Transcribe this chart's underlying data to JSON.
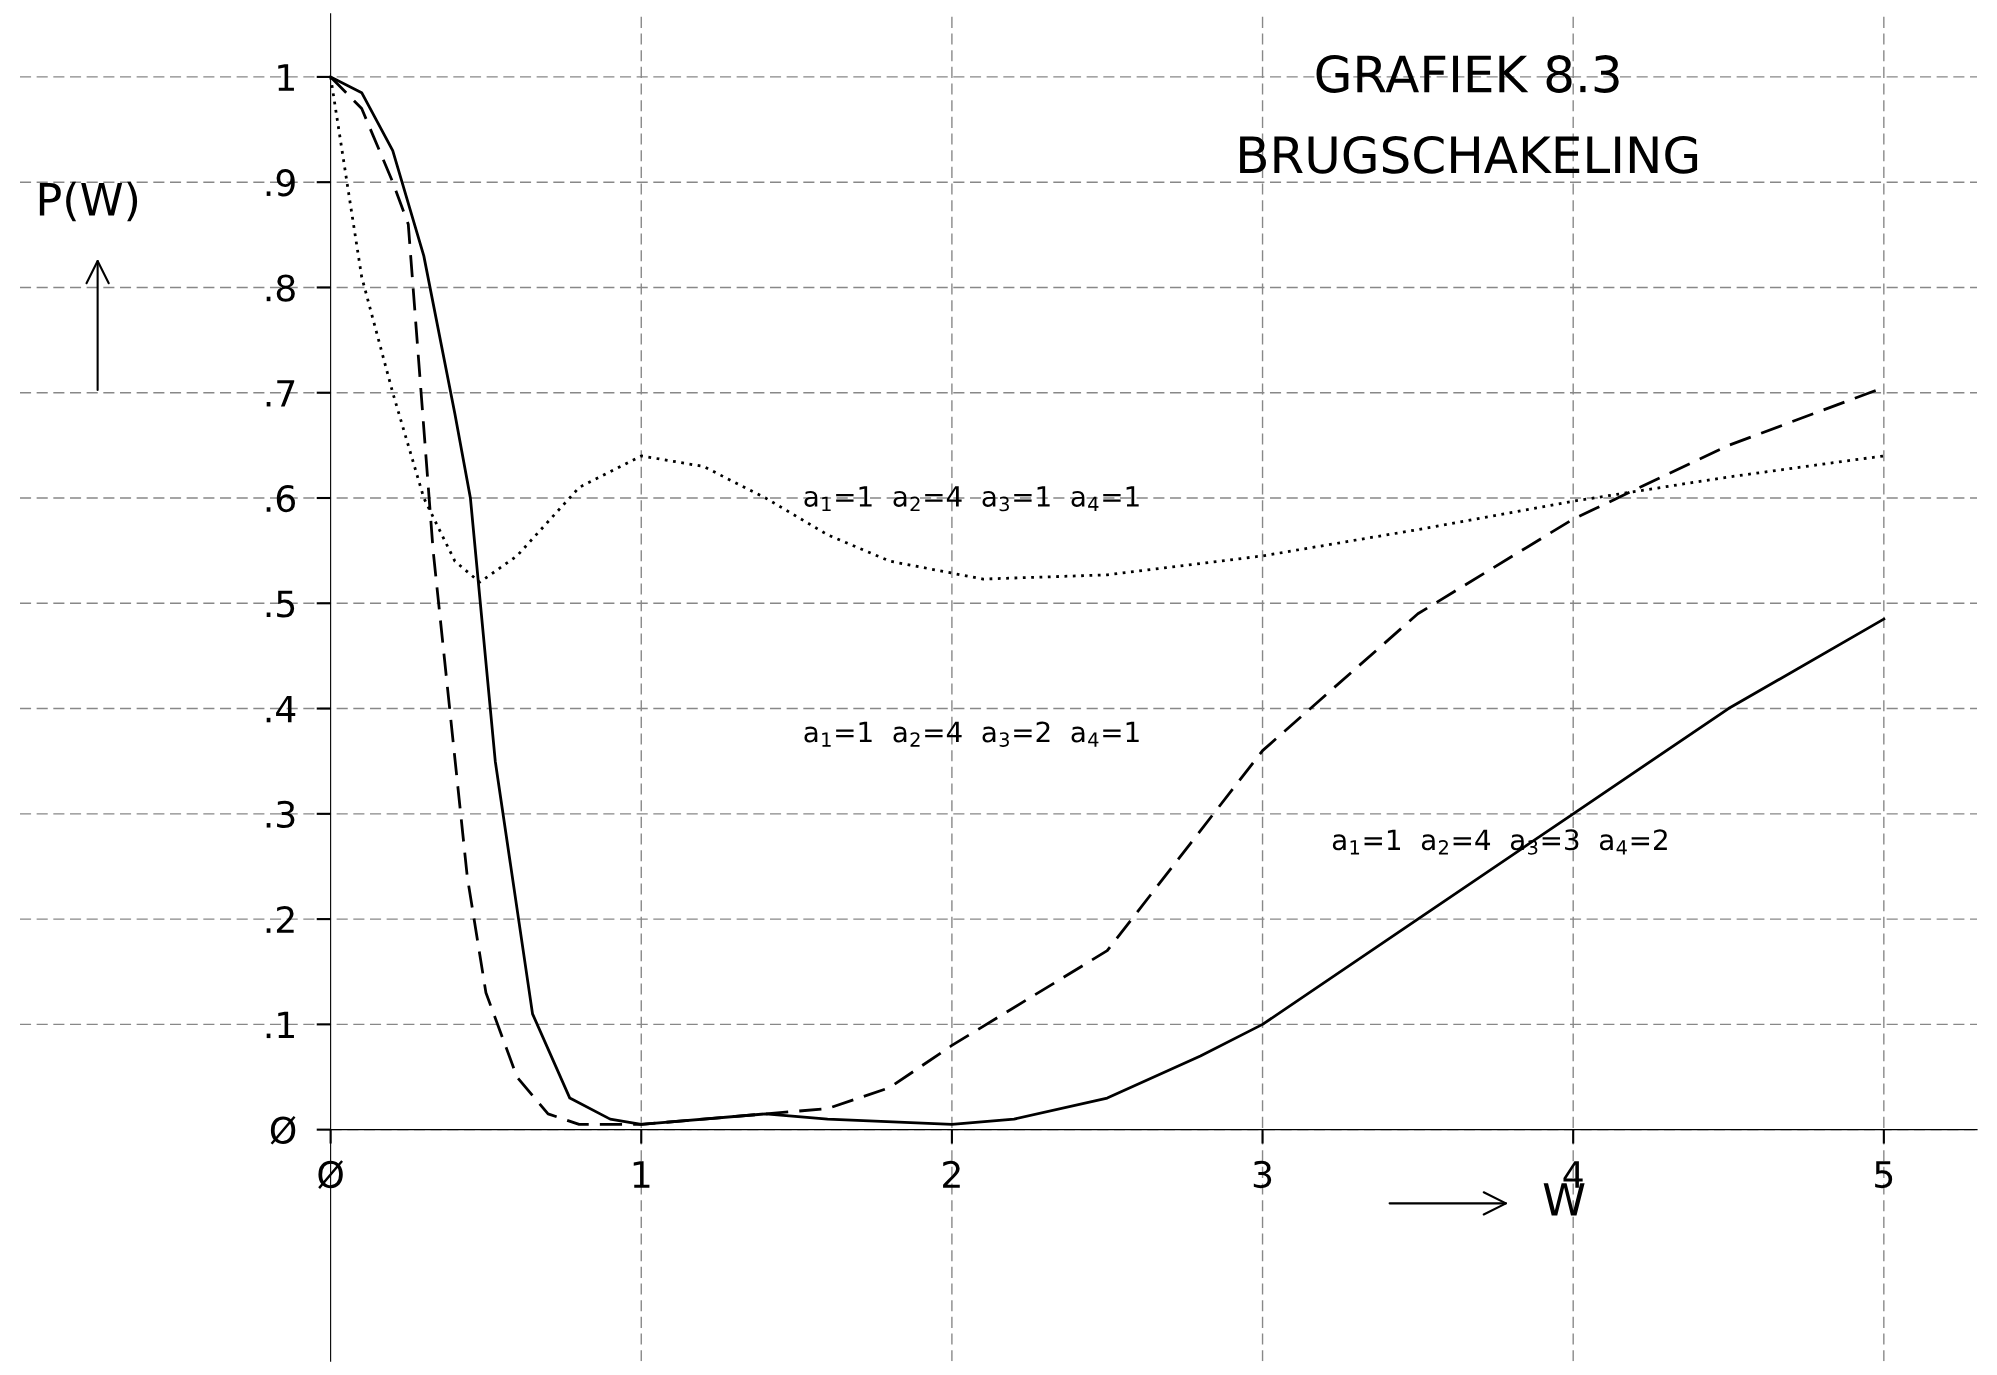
{
  "chart_data": {
    "type": "line",
    "title": "GRAFIEK 8.3",
    "subtitle": "BRUGSCHAKELING",
    "xlabel": "W",
    "ylabel": "P(W)",
    "xlim": [
      -1,
      5.3
    ],
    "ylim": [
      -0.22,
      1.06
    ],
    "xticks": [
      {
        "value": 0,
        "label": "Ø"
      },
      1,
      2,
      3,
      4,
      5
    ],
    "yticks": [
      {
        "value": 0,
        "label": "Ø"
      },
      {
        "value": 0.1,
        "label": ".1"
      },
      {
        "value": 0.2,
        "label": ".2"
      },
      {
        "value": 0.3,
        "label": ".3"
      },
      {
        "value": 0.4,
        "label": ".4"
      },
      {
        "value": 0.5,
        "label": ".5"
      },
      {
        "value": 0.6,
        "label": ".6"
      },
      {
        "value": 0.7,
        "label": ".7"
      },
      {
        "value": 0.8,
        "label": ".8"
      },
      {
        "value": 0.9,
        "label": ".9"
      },
      1
    ],
    "grid": true,
    "series": [
      {
        "color": "#000000",
        "line_style": "dotted",
        "x": [
          0,
          0.1,
          0.2,
          0.3,
          0.4,
          0.48,
          0.6,
          0.8,
          1,
          1.2,
          1.4,
          1.6,
          1.8,
          2.1,
          2.5,
          3,
          3.5,
          4,
          4.5,
          5
        ],
        "values": [
          1,
          0.81,
          0.7,
          0.6,
          0.54,
          0.52,
          0.545,
          0.61,
          0.64,
          0.63,
          0.6,
          0.565,
          0.54,
          0.523,
          0.527,
          0.545,
          0.57,
          0.597,
          0.62,
          0.64
        ]
      },
      {
        "color": "#000000",
        "line_style": "dashed",
        "x": [
          0,
          0.1,
          0.2,
          0.25,
          0.33,
          0.44,
          0.5,
          0.6,
          0.7,
          0.8,
          1,
          1.2,
          1.4,
          1.6,
          1.8,
          2,
          2.5,
          3,
          3.5,
          4,
          4.5,
          5
        ],
        "values": [
          1,
          0.97,
          0.9,
          0.86,
          0.55,
          0.24,
          0.13,
          0.05,
          0.015,
          0.005,
          0.005,
          0.01,
          0.015,
          0.02,
          0.04,
          0.08,
          0.17,
          0.36,
          0.49,
          0.58,
          0.65,
          0.705
        ]
      },
      {
        "color": "#000000",
        "line_style": "solid",
        "x": [
          0,
          0.1,
          0.2,
          0.3,
          0.4,
          0.45,
          0.53,
          0.65,
          0.77,
          0.9,
          1,
          1.4,
          1.6,
          2,
          2.2,
          2.5,
          2.8,
          3,
          3.5,
          4,
          4.5,
          5
        ],
        "values": [
          1,
          0.985,
          0.93,
          0.83,
          0.68,
          0.6,
          0.35,
          0.11,
          0.03,
          0.01,
          0.005,
          0.015,
          0.01,
          0.005,
          0.01,
          0.03,
          0.07,
          0.1,
          0.2,
          0.3,
          0.4,
          0.485
        ]
      }
    ],
    "annotations": [
      "a$_{1}$=1  a$_{2}$=4  a$_{3}$=1  a$_{4}$=1",
      "a$_{1}$=1  a$_{2}$=4  a$_{3}$=2  a$_{4}$=1",
      "a$_{1}$=1  a$_{2}$=4  a$_{3}$=3  a$_{4}$=2"
    ]
  }
}
